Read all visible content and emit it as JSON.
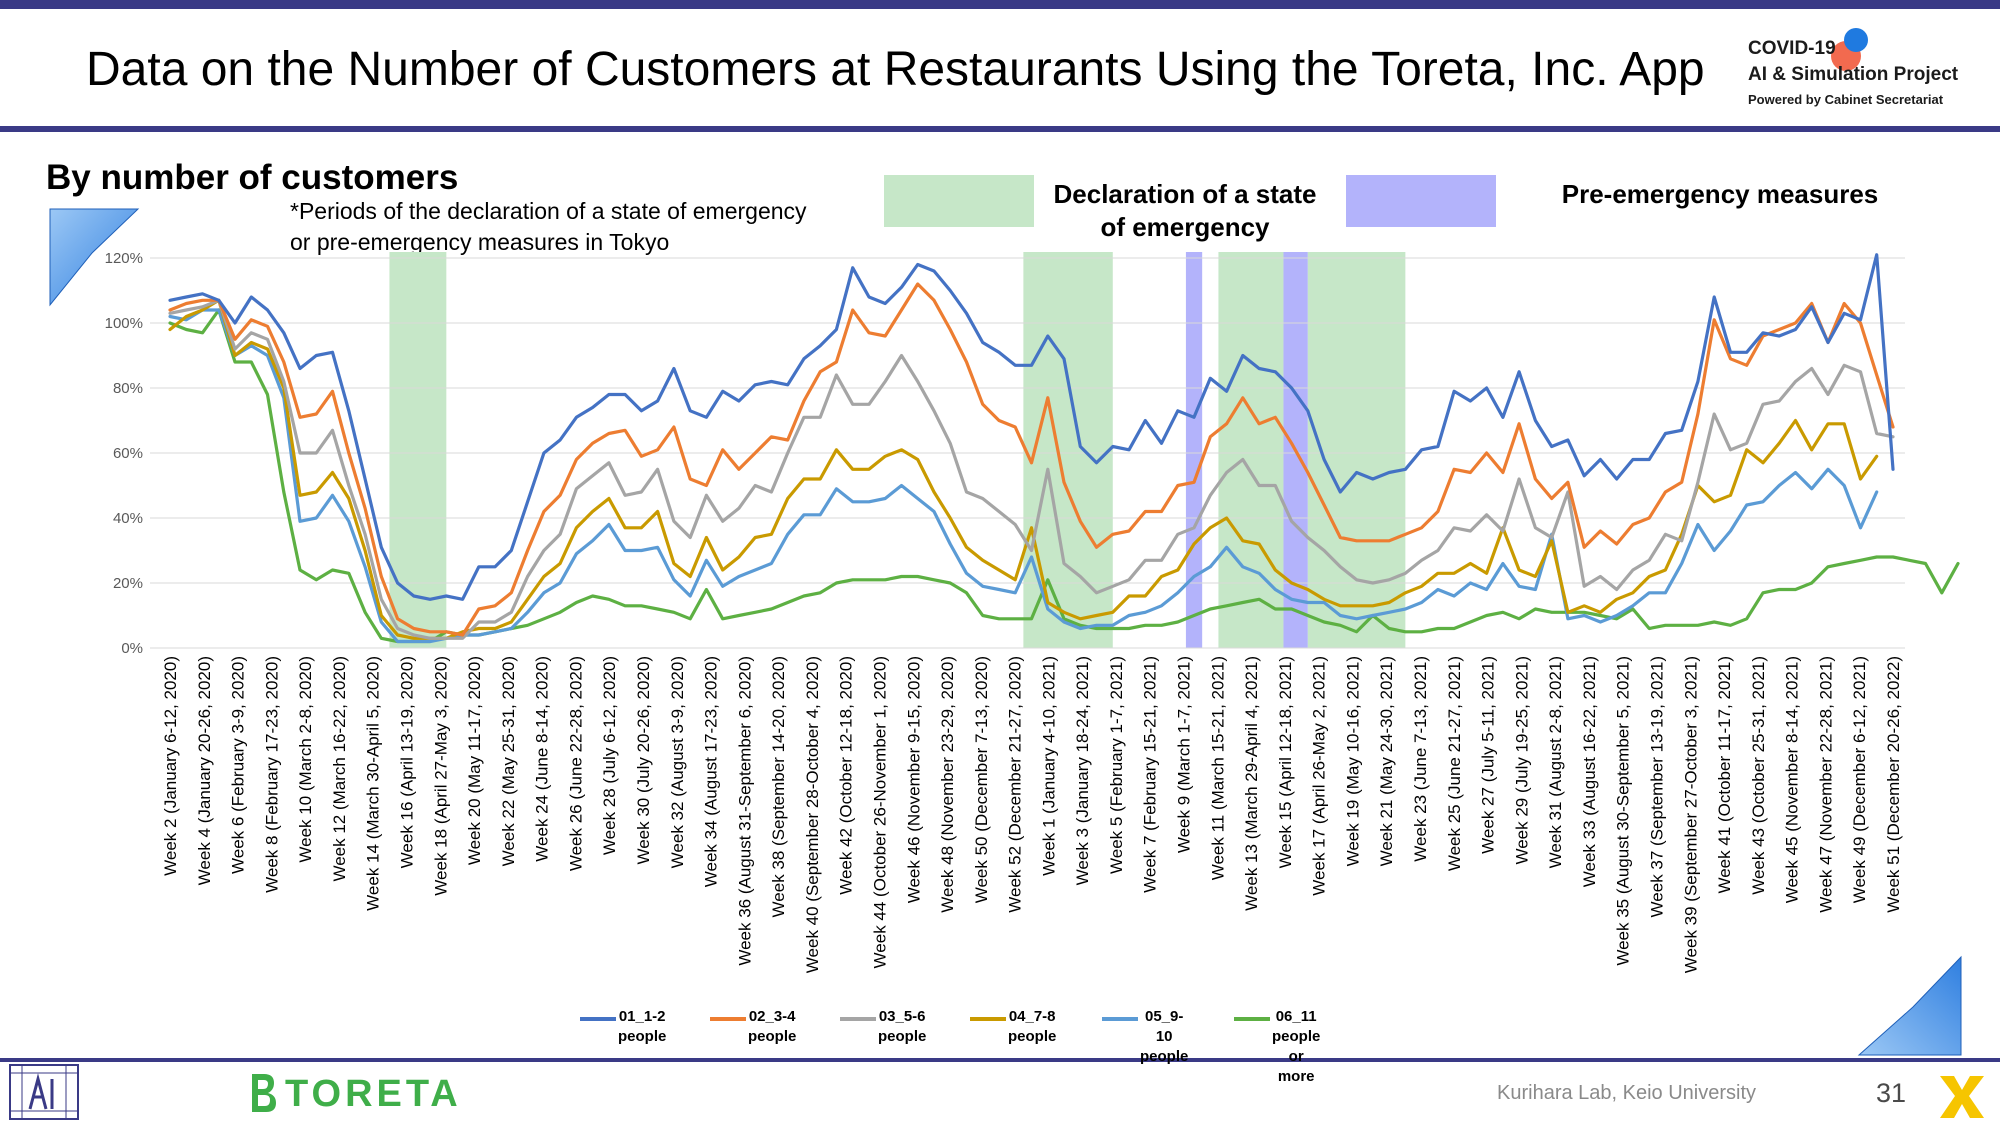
{
  "header": {
    "title": "Data on the Number of Customers at Restaurants Using the Toreta, Inc. App",
    "badge_line1": "COVID-19",
    "badge_line2": "AI & Simulation Project",
    "badge_sub": "Powered by Cabinet Secretariat"
  },
  "subtitle": "By number of customers",
  "note_line1": "*Periods of the declaration of a state of emergency",
  "note_line2": "or pre-emergency measures in Tokyo",
  "period_legend": {
    "emergency_line1": "Declaration of a state",
    "emergency_line2": "of emergency",
    "pre_emergency": "Pre-emergency measures"
  },
  "footer": {
    "brand": "TORETA",
    "lab": "Kurihara Lab, Keio University",
    "page": "31"
  },
  "colors": {
    "s1": "#4472c4",
    "s2": "#ed7d31",
    "s3": "#a5a5a5",
    "s4": "#c99a00",
    "s5": "#5b9bd5",
    "s6": "#5db043",
    "emergency": "#c6e7c8",
    "pre_emergency": "#b3b3fb",
    "accent": "#3a3a86"
  },
  "chart_data": {
    "type": "line",
    "y_ticks": [
      "0%",
      "20%",
      "40%",
      "60%",
      "80%",
      "100%",
      "120%"
    ],
    "ylim": [
      0,
      120
    ],
    "grid": true,
    "x_labels": [
      "Week 2 (January 6-12, 2020)",
      "Week 4 (January 20-26, 2020)",
      "Week 6 (February 3-9, 2020)",
      "Week 8 (February 17-23, 2020)",
      "Week 10 (March 2-8, 2020)",
      "Week 12 (March 16-22, 2020)",
      "Week 14 (March 30-April 5, 2020)",
      "Week 16 (April 13-19, 2020)",
      "Week 18 (April 27-May 3, 2020)",
      "Week 20 (May 11-17, 2020)",
      "Week 22 (May 25-31, 2020)",
      "Week 24 (June 8-14, 2020)",
      "Week 26 (June 22-28, 2020)",
      "Week 28 (July 6-12, 2020)",
      "Week 30 (July 20-26, 2020)",
      "Week 32 (August 3-9, 2020)",
      "Week 34 (August 17-23, 2020)",
      "Week 36 (August 31-September 6, 2020)",
      "Week 38 (September 14-20, 2020)",
      "Week 40 (September 28-October 4, 2020)",
      "Week 42 (October 12-18, 2020)",
      "Week 44 (October 26-November 1, 2020)",
      "Week 46 (November 9-15, 2020)",
      "Week 48 (November 23-29, 2020)",
      "Week 50 (December 7-13, 2020)",
      "Week 52 (December 21-27, 2020)",
      "Week 1 (January 4-10, 2021)",
      "Week 3 (January 18-24, 2021)",
      "Week 5 (February 1-7, 2021)",
      "Week 7 (February 15-21, 2021)",
      "Week 9 (March 1-7, 2021)",
      "Week 11 (March 15-21, 2021)",
      "Week 13 (March 29-April 4, 2021)",
      "Week 15 (April 12-18, 2021)",
      "Week 17 (April 26-May 2, 2021)",
      "Week 19 (May 10-16, 2021)",
      "Week 21 (May 24-30, 2021)",
      "Week 23 (June 7-13, 2021)",
      "Week 25 (June 21-27, 2021)",
      "Week 27 (July 5-11, 2021)",
      "Week 29 (July 19-25, 2021)",
      "Week 31 (August 2-8, 2021)",
      "Week 33 (August 16-22, 2021)",
      "Week 35 (August 30-September 5, 2021)",
      "Week 37 (September 13-19, 2021)",
      "Week 39 (September 27-October 3, 2021)",
      "Week 41 (October 11-17, 2021)",
      "Week 43 (October 25-31, 2021)",
      "Week 45 (November 8-14, 2021)",
      "Week 47 (November 22-28, 2021)",
      "Week 49 (December 6-12, 2021)",
      "Week 51 (December 20-26, 2022)"
    ],
    "periods": [
      {
        "type": "emergency",
        "from": 13.5,
        "to": 17
      },
      {
        "type": "emergency",
        "from": 52.5,
        "to": 58
      },
      {
        "type": "pre_emergency",
        "from": 62.5,
        "to": 63.5
      },
      {
        "type": "emergency",
        "from": 64.5,
        "to": 68.5
      },
      {
        "type": "pre_emergency",
        "from": 68.5,
        "to": 70
      },
      {
        "type": "emergency",
        "from": 70,
        "to": 76
      }
    ],
    "series": [
      {
        "name": "01_1-2 people",
        "legend1": "01_1-2",
        "legend2": "people",
        "color": "#4472c4",
        "values": [
          107,
          108,
          109,
          107,
          100,
          108,
          104,
          97,
          86,
          90,
          91,
          73,
          52,
          31,
          20,
          16,
          15,
          16,
          15,
          25,
          25,
          30,
          45,
          60,
          64,
          71,
          74,
          78,
          78,
          73,
          76,
          86,
          73,
          71,
          79,
          76,
          81,
          82,
          81,
          89,
          93,
          98,
          117,
          108,
          106,
          111,
          118,
          116,
          110,
          103,
          94,
          91,
          87,
          87,
          96,
          89,
          62,
          57,
          62,
          61,
          70,
          63,
          73,
          71,
          83,
          79,
          90,
          86,
          85,
          80,
          73,
          58,
          48,
          54,
          52,
          54,
          55,
          61,
          62,
          79,
          76,
          80,
          71,
          85,
          70,
          62,
          64,
          53,
          58,
          52,
          58,
          58,
          66,
          67,
          82,
          108,
          91,
          91,
          97,
          96,
          98,
          105,
          94,
          103,
          101,
          121,
          55
        ]
      },
      {
        "name": "02_3-4 people",
        "legend1": "02_3-4",
        "legend2": "people",
        "color": "#ed7d31",
        "values": [
          104,
          106,
          107,
          107,
          95,
          101,
          99,
          88,
          71,
          72,
          79,
          60,
          43,
          22,
          9,
          6,
          5,
          5,
          4,
          12,
          13,
          17,
          30,
          42,
          47,
          58,
          63,
          66,
          67,
          59,
          61,
          68,
          52,
          50,
          61,
          55,
          60,
          65,
          64,
          76,
          85,
          88,
          104,
          97,
          96,
          104,
          112,
          107,
          98,
          88,
          75,
          70,
          68,
          57,
          77,
          51,
          39,
          31,
          35,
          36,
          42,
          42,
          50,
          51,
          65,
          69,
          77,
          69,
          71,
          63,
          54,
          44,
          34,
          33,
          33,
          33,
          35,
          37,
          42,
          55,
          54,
          60,
          54,
          69,
          52,
          46,
          51,
          31,
          36,
          32,
          38,
          40,
          48,
          51,
          72,
          101,
          89,
          87,
          96,
          98,
          100,
          106,
          94,
          106,
          100,
          84,
          68
        ]
      },
      {
        "name": "03_5-6 people",
        "legend1": "03_5-6",
        "legend2": "people",
        "color": "#a5a5a5",
        "values": [
          103,
          104,
          105,
          107,
          92,
          97,
          95,
          82,
          60,
          60,
          67,
          50,
          35,
          15,
          6,
          4,
          3,
          3,
          3,
          8,
          8,
          11,
          22,
          30,
          35,
          49,
          53,
          57,
          47,
          48,
          55,
          39,
          34,
          47,
          39,
          43,
          50,
          48,
          60,
          71,
          71,
          84,
          75,
          75,
          82,
          90,
          82,
          73,
          63,
          48,
          46,
          42,
          38,
          30,
          55,
          26,
          22,
          17,
          19,
          21,
          27,
          27,
          35,
          37,
          47,
          54,
          58,
          50,
          50,
          39,
          34,
          30,
          25,
          21,
          20,
          21,
          23,
          27,
          30,
          37,
          36,
          41,
          36,
          52,
          37,
          34,
          48,
          19,
          22,
          18,
          24,
          27,
          35,
          33,
          51,
          72,
          61,
          63,
          75,
          76,
          82,
          86,
          78,
          87,
          85,
          66,
          65
        ]
      },
      {
        "name": "04_7-8 people",
        "legend1": "04_7-8",
        "legend2": "people",
        "color": "#c99a00",
        "values": [
          98,
          102,
          104,
          107,
          90,
          94,
          92,
          80,
          47,
          48,
          54,
          46,
          30,
          10,
          4,
          3,
          3,
          3,
          5,
          6,
          6,
          8,
          15,
          22,
          26,
          37,
          42,
          46,
          37,
          37,
          42,
          26,
          22,
          34,
          24,
          28,
          34,
          35,
          46,
          52,
          52,
          61,
          55,
          55,
          59,
          61,
          58,
          48,
          40,
          31,
          27,
          24,
          21,
          37,
          14,
          11,
          9,
          10,
          11,
          16,
          16,
          22,
          24,
          32,
          37,
          40,
          33,
          32,
          24,
          20,
          18,
          15,
          13,
          13,
          13,
          14,
          17,
          19,
          23,
          23,
          26,
          23,
          37,
          24,
          22,
          33,
          11,
          13,
          11,
          15,
          17,
          22,
          24,
          35,
          50,
          45,
          47,
          61,
          57,
          63,
          70,
          61,
          69,
          69,
          52,
          59
        ]
      },
      {
        "name": "05_9-10 people",
        "legend1": "05_9-10",
        "legend2": "people",
        "color": "#5b9bd5",
        "values": [
          102,
          101,
          104,
          104,
          90,
          93,
          90,
          77,
          39,
          40,
          47,
          39,
          25,
          8,
          2,
          2,
          2,
          3,
          4,
          4,
          5,
          6,
          11,
          17,
          20,
          29,
          33,
          38,
          30,
          30,
          31,
          21,
          16,
          27,
          19,
          22,
          24,
          26,
          35,
          41,
          41,
          49,
          45,
          45,
          46,
          50,
          46,
          42,
          32,
          23,
          19,
          18,
          17,
          28,
          12,
          8,
          6,
          7,
          7,
          10,
          11,
          13,
          17,
          22,
          25,
          31,
          25,
          23,
          18,
          15,
          14,
          14,
          10,
          9,
          10,
          11,
          12,
          14,
          18,
          16,
          20,
          18,
          26,
          19,
          18,
          35,
          9,
          10,
          8,
          10,
          13,
          17,
          17,
          26,
          38,
          30,
          36,
          44,
          45,
          50,
          54,
          49,
          55,
          50,
          37,
          48
        ]
      },
      {
        "name": "06_11 people or more",
        "legend1": "06_11 people",
        "legend2": "or more",
        "color": "#5db043",
        "values": [
          100,
          98,
          97,
          104,
          88,
          88,
          78,
          48,
          24,
          21,
          24,
          23,
          11,
          3,
          2,
          2,
          2,
          5,
          4,
          4,
          5,
          6,
          7,
          9,
          11,
          14,
          16,
          15,
          13,
          13,
          12,
          11,
          9,
          18,
          9,
          10,
          11,
          12,
          14,
          16,
          17,
          20,
          21,
          21,
          21,
          22,
          22,
          21,
          20,
          17,
          10,
          9,
          9,
          9,
          21,
          9,
          7,
          6,
          6,
          6,
          7,
          7,
          8,
          10,
          12,
          13,
          14,
          15,
          12,
          12,
          10,
          8,
          7,
          5,
          10,
          6,
          5,
          5,
          6,
          6,
          8,
          10,
          11,
          9,
          12,
          11,
          11,
          11,
          10,
          9,
          12,
          6,
          7,
          7,
          7,
          8,
          7,
          9,
          17,
          18,
          18,
          20,
          25,
          26,
          27,
          28,
          28,
          27,
          26,
          17,
          26
        ]
      }
    ]
  }
}
